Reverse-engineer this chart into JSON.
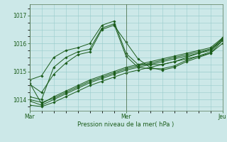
{
  "bg_color": "#cce8e8",
  "grid_color": "#99cccc",
  "line_color": "#1a5c1a",
  "xlabel": "Pression niveau de la mer( hPa )",
  "ylim": [
    1013.6,
    1017.4
  ],
  "yticks": [
    1014,
    1015,
    1016,
    1017
  ],
  "xtick_labels": [
    "Mar",
    "Mer",
    "Jeu"
  ],
  "xtick_positions": [
    0,
    48,
    96
  ],
  "total_hours": 96,
  "series": [
    {
      "x": [
        0,
        6,
        12,
        18,
        24,
        30,
        36,
        42,
        48,
        54,
        60,
        66,
        72,
        78,
        84,
        90,
        96
      ],
      "y": [
        1014.7,
        1014.85,
        1015.5,
        1015.75,
        1015.85,
        1016.0,
        1016.65,
        1016.8,
        1015.65,
        1015.25,
        1015.25,
        1015.25,
        1015.35,
        1015.5,
        1015.65,
        1015.8,
        1016.15
      ]
    },
    {
      "x": [
        0,
        6,
        12,
        18,
        24,
        30,
        36,
        42,
        48,
        54,
        60,
        66,
        72,
        78,
        84,
        90,
        96
      ],
      "y": [
        1014.1,
        1014.0,
        1015.15,
        1015.5,
        1015.7,
        1015.8,
        1016.55,
        1016.7,
        1015.55,
        1015.15,
        1015.1,
        1015.1,
        1015.2,
        1015.4,
        1015.55,
        1015.7,
        1016.2
      ]
    },
    {
      "x": [
        0,
        6,
        12,
        18,
        24,
        30,
        36,
        42,
        48,
        54,
        60,
        66,
        72,
        78,
        84,
        90,
        96
      ],
      "y": [
        1014.55,
        1014.25,
        1014.9,
        1015.3,
        1015.6,
        1015.7,
        1016.5,
        1016.65,
        1016.05,
        1015.45,
        1015.15,
        1015.05,
        1015.15,
        1015.35,
        1015.5,
        1015.65,
        1016.1
      ]
    },
    {
      "x": [
        0,
        6,
        12,
        18,
        24,
        30,
        36,
        42,
        48,
        54,
        60,
        66,
        72,
        78,
        84,
        90,
        96
      ],
      "y": [
        1014.6,
        1013.85,
        1014.1,
        1014.3,
        1014.5,
        1014.7,
        1014.85,
        1015.0,
        1015.15,
        1015.25,
        1015.35,
        1015.45,
        1015.55,
        1015.65,
        1015.75,
        1015.85,
        1016.2
      ]
    },
    {
      "x": [
        0,
        6,
        12,
        18,
        24,
        30,
        36,
        42,
        48,
        54,
        60,
        66,
        72,
        78,
        84,
        90,
        96
      ],
      "y": [
        1013.95,
        1013.8,
        1014.0,
        1014.2,
        1014.4,
        1014.6,
        1014.75,
        1014.9,
        1015.05,
        1015.15,
        1015.25,
        1015.35,
        1015.45,
        1015.55,
        1015.65,
        1015.75,
        1016.1
      ]
    },
    {
      "x": [
        0,
        6,
        12,
        18,
        24,
        30,
        36,
        42,
        48,
        54,
        60,
        66,
        72,
        78,
        84,
        90,
        96
      ],
      "y": [
        1013.8,
        1013.75,
        1013.9,
        1014.1,
        1014.3,
        1014.5,
        1014.65,
        1014.8,
        1014.95,
        1015.05,
        1015.15,
        1015.25,
        1015.35,
        1015.45,
        1015.55,
        1015.65,
        1016.0
      ]
    },
    {
      "x": [
        0,
        6,
        12,
        18,
        24,
        30,
        36,
        42,
        48,
        54,
        60,
        66,
        72,
        78,
        84,
        90,
        96
      ],
      "y": [
        1014.0,
        1013.9,
        1014.05,
        1014.25,
        1014.45,
        1014.65,
        1014.8,
        1014.95,
        1015.1,
        1015.2,
        1015.3,
        1015.4,
        1015.5,
        1015.6,
        1015.7,
        1015.8,
        1016.15
      ]
    }
  ],
  "minor_x_step": 6,
  "figsize": [
    3.2,
    2.0
  ],
  "dpi": 100
}
